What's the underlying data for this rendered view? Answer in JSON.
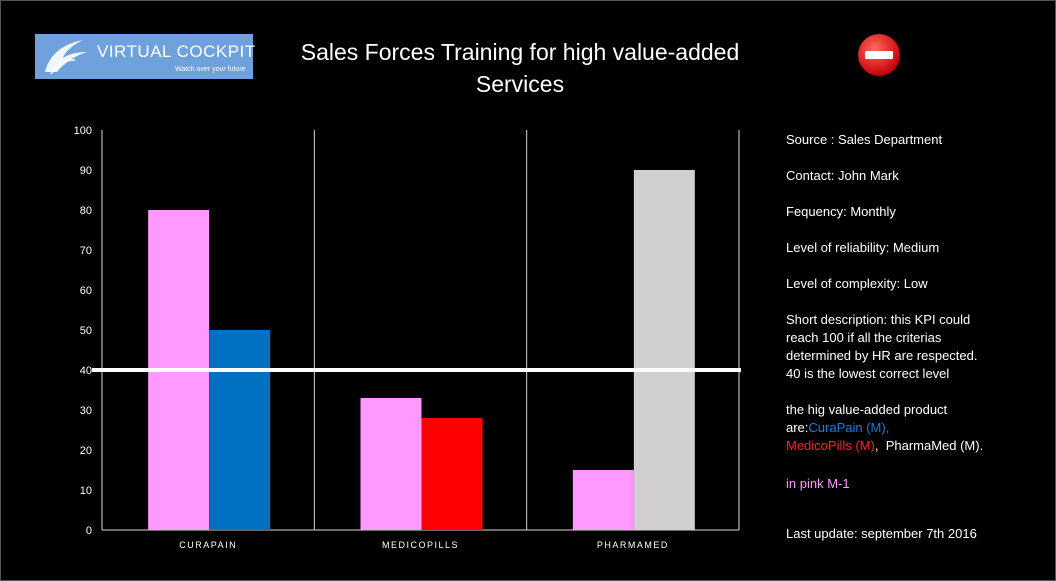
{
  "logo": {
    "name": "VIRTUAL COCKPIT",
    "tagline": "Watch over your future"
  },
  "title": "Sales Forces Training for high value-added Services",
  "status_icon": "no-entry-icon",
  "colors": {
    "prior_month": "#ff99ff",
    "curapain": "#0070c0",
    "medicopills": "#ff0000",
    "pharmamed": "#d0cece",
    "threshold_line": "#ffffff"
  },
  "chart_data": {
    "type": "bar",
    "title": "Sales Forces Training for high value-added Services",
    "categories": [
      "CURAPAIN",
      "MEDICOPILLS",
      "PHARMAMED"
    ],
    "series": [
      {
        "name": "M-1",
        "values": [
          80,
          33,
          15
        ]
      },
      {
        "name": "M",
        "values": [
          50,
          28,
          90
        ]
      }
    ],
    "ylim": [
      0,
      100
    ],
    "yticks": [
      0,
      10,
      20,
      30,
      40,
      50,
      60,
      70,
      80,
      90,
      100
    ],
    "threshold": 40,
    "grid": false
  },
  "info": {
    "source": "Source : Sales Department",
    "contact": "Contact: John Mark",
    "frequency": "Fequency: Monthly",
    "reliability": "Level of reliability: Medium",
    "complexity": "Level of complexity:  Low",
    "description": "Short description:  this KPI  could reach 100 if all the criterias determined by HR are respected. 40 is the lowest correct level",
    "products_intro": "the hig value-added product are:",
    "product_1": "CuraPain (M),",
    "product_2": "MedicoPills (M)",
    "product_3": "PharmaMed (M).",
    "pink_note": "in pink M-1",
    "last_update": "Last update:  september 7th 2016"
  }
}
